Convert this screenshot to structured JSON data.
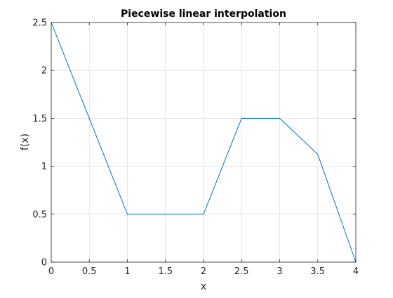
{
  "chart_data": {
    "type": "line",
    "title": "Piecewise linear interpolation",
    "xlabel": "x",
    "ylabel": "f(x)",
    "xlim": [
      0,
      4
    ],
    "ylim": [
      0,
      2.5
    ],
    "grid": true,
    "xticks": [
      0,
      0.5,
      1,
      1.5,
      2,
      2.5,
      3,
      3.5,
      4
    ],
    "xtick_labels": [
      "0",
      "0.5",
      "1",
      "1.5",
      "2",
      "2.5",
      "3",
      "3.5",
      "4"
    ],
    "yticks": [
      0,
      0.5,
      1,
      1.5,
      2,
      2.5
    ],
    "ytick_labels": [
      "0",
      "0.5",
      "1",
      "1.5",
      "2",
      "2.5"
    ],
    "series": [
      {
        "color": "#0072BD",
        "x": [
          0,
          1,
          2,
          2.5,
          3,
          3.5,
          4
        ],
        "y": [
          2.5,
          0.5,
          0.5,
          1.5,
          1.5,
          1.125,
          0
        ]
      }
    ]
  }
}
